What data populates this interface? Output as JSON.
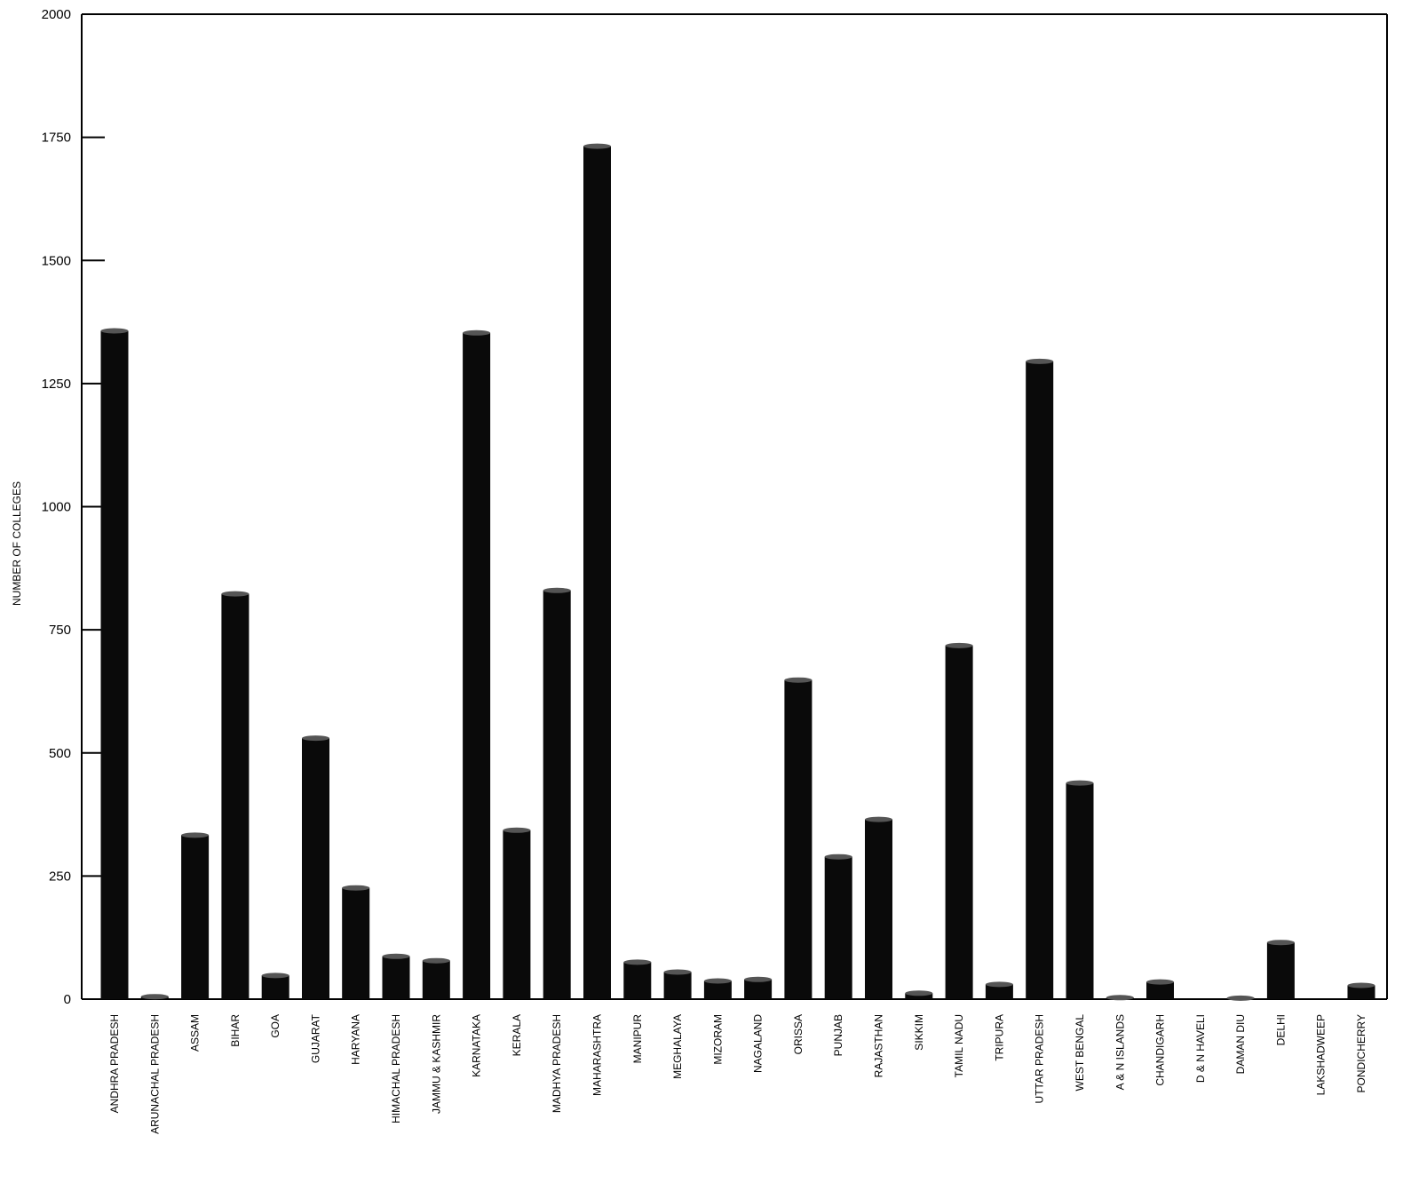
{
  "chart_data": {
    "type": "bar",
    "title": "",
    "xlabel": "",
    "ylabel": "NUMBER OF COLLEGES",
    "ylim": [
      0,
      2000
    ],
    "yticks": [
      0,
      250,
      500,
      750,
      1000,
      1250,
      1500,
      1750,
      2000
    ],
    "grid": false,
    "legend": "none",
    "bar_color": "#0a0a0a",
    "categories": [
      "ANDHRA PRADESH",
      "ARUNACHAL PRADESH",
      "ASSAM",
      "BIHAR",
      "GOA",
      "GUJARAT",
      "HARYANA",
      "HIMACHAL PRADESH",
      "JAMMU & KASHMIR",
      "KARNATAKA",
      "KERALA",
      "MADHYA PRADESH",
      "MAHARASHTRA",
      "MANIPUR",
      "MEGHALAYA",
      "MIZORAM",
      "NAGALAND",
      "ORISSA",
      "PUNJAB",
      "RAJASTHAN",
      "SIKKIM",
      "TAMIL NADU",
      "TRIPURA",
      "UTTAR PRADESH",
      "WEST BENGAL",
      "A & N ISLANDS",
      "CHANDIGARH",
      "D & N HAVELI",
      "DAMAN DIU",
      "DELHI",
      "LAKSHADWEEP",
      "PONDICHERRY"
    ],
    "values": [
      1357,
      5,
      333,
      823,
      48,
      530,
      226,
      87,
      78,
      1353,
      343,
      830,
      1732,
      75,
      55,
      37,
      40,
      648,
      289,
      365,
      12,
      718,
      30,
      1295,
      439,
      3,
      35,
      0,
      2,
      115,
      0,
      28
    ]
  }
}
